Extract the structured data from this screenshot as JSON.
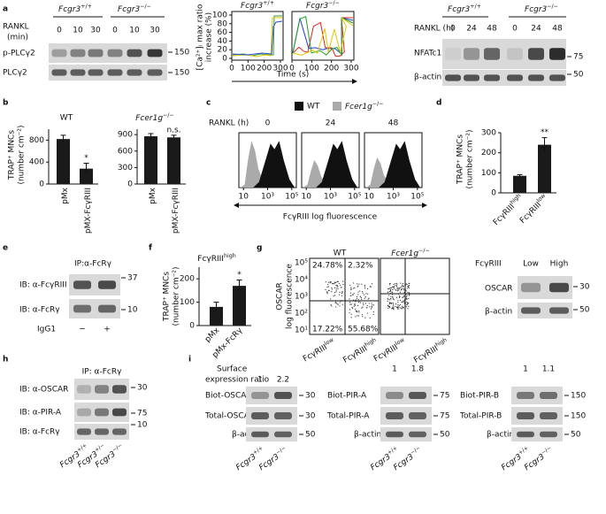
{
  "a": {
    "label": "a",
    "phospho": {
      "genotypes": [
        "Fcgr3+/+",
        "Fcgr3−/−"
      ],
      "treatment": "RANKL",
      "unit": "(min)",
      "times": [
        0,
        10,
        30,
        0,
        10,
        30
      ],
      "rows": [
        "p-PLCγ2",
        "PLCγ2"
      ],
      "mw": [
        150,
        150
      ]
    },
    "calcium": {
      "titles": [
        "Fcgr3+/+",
        "Fcgr3−/−"
      ],
      "ylabel": [
        "[Ca²⁺]ᵢ max ratio",
        "increase (%)"
      ],
      "xlabel": "Time (s)",
      "ylim": [
        0,
        100
      ],
      "yticks": [
        0,
        20,
        40,
        60,
        80,
        100
      ],
      "xlim": [
        0,
        300
      ],
      "xticks": [
        0,
        100,
        200,
        300
      ]
    },
    "nfatc1": {
      "genotypes": [
        "Fcgr3+/+",
        "Fcgr3−/−"
      ],
      "treatment": "RANKL (h)",
      "times": [
        0,
        24,
        48,
        0,
        24,
        48
      ],
      "rows": [
        "NFATc1",
        "β-actin"
      ],
      "mw": [
        75,
        50
      ]
    }
  },
  "b": {
    "label": "b",
    "ylabel": [
      "TRAP⁺ MNCs",
      "(number cm⁻²)"
    ],
    "charts": [
      {
        "title": "WT",
        "categories": [
          "pMx",
          "pMX-FcγRIII"
        ],
        "values": [
          820,
          280
        ],
        "errors": [
          70,
          100
        ],
        "annotations": [
          null,
          "*"
        ],
        "color": "#1a1a1a",
        "ylim": [
          0,
          1000
        ],
        "yticks": [
          0,
          400,
          800
        ]
      },
      {
        "title": "Fcer1g−/−",
        "categories": [
          "pMx",
          "pMX-FcγRIII"
        ],
        "values": [
          870,
          850
        ],
        "errors": [
          50,
          40
        ],
        "annotations": [
          null,
          "n.s."
        ],
        "color": "#1a1a1a",
        "ylim": [
          0,
          1000
        ],
        "yticks": [
          0,
          300,
          600,
          900
        ]
      }
    ]
  },
  "c": {
    "label": "c",
    "legend": [
      "WT",
      "Fcer1g−/−"
    ],
    "treatment": "RANKL (h)",
    "times": [
      0,
      24,
      48
    ],
    "xticks": [
      "10",
      "10³",
      "10⁵"
    ],
    "xlabel": "FcγRIII log fluorescence"
  },
  "d": {
    "label": "d",
    "ylabel": [
      "TRAP⁺ MNCs",
      "(number cm⁻²)"
    ],
    "categories": [
      "FcγRIIIhigh",
      "FcγRIIIlow"
    ],
    "values": [
      85,
      240
    ],
    "errors": [
      6,
      35
    ],
    "annotations": [
      null,
      "**"
    ],
    "color": "#1a1a1a",
    "ylim": [
      0,
      300
    ],
    "yticks": [
      0,
      100,
      200,
      300
    ]
  },
  "e": {
    "label": "e",
    "ip": "IP:α-FcRγ",
    "rows": [
      "IB: α-FcγRIII",
      "IB: α-FcRγ"
    ],
    "mw": [
      37,
      10
    ],
    "control": "IgG1",
    "signs": [
      "−",
      "+"
    ]
  },
  "f": {
    "label": "f",
    "title": "FcγRIIIhigh",
    "ylabel": [
      "TRAP⁺ MNCs",
      "(number cm⁻²)"
    ],
    "categories": [
      "pMx",
      "pMx-FcRγ"
    ],
    "values": [
      80,
      170
    ],
    "errors": [
      20,
      25
    ],
    "annotations": [
      null,
      "*"
    ],
    "color": "#1a1a1a",
    "ylim": [
      0,
      250
    ],
    "yticks": [
      0,
      100,
      200
    ]
  },
  "g": {
    "label": "g",
    "titles": [
      "WT",
      "Fcer1g−/−"
    ],
    "ylabel": [
      "OSCAR",
      "log fluorescence"
    ],
    "yticks": [
      "10¹",
      "10²",
      "10³",
      "10⁴",
      "10⁵"
    ],
    "quadrants": [
      "24.78%",
      "2.32%",
      "17.22%",
      "55.68%"
    ],
    "xcategories": [
      "FcγRIIIlow",
      "FcγRIIIhigh"
    ],
    "blot": {
      "group": "FcγRIII",
      "levels": [
        "Low",
        "High"
      ],
      "rows": [
        "OSCAR",
        "β-actin"
      ],
      "mw": [
        30,
        50
      ]
    }
  },
  "h": {
    "label": "h",
    "ip": "IP: α-FcRγ",
    "rows": [
      "IB: α-OSCAR",
      "IB: α-PIR-A",
      "IB: α-FcRγ"
    ],
    "mw": [
      30,
      75,
      10
    ],
    "genotypes": [
      "Fcgr3+/+",
      "Fcgr3+/−",
      "Fcgr3−/−"
    ]
  },
  "i": {
    "label": "i",
    "ratio_label": [
      "Surface",
      "expression ratio"
    ],
    "genotypes": [
      "Fcgr3+/+",
      "Fcgr3−/−"
    ],
    "blots": [
      {
        "ratios": [
          1,
          2.2
        ],
        "rows": [
          "Biot-OSCAR",
          "Total-OSCAR",
          "β-actin"
        ],
        "mw": [
          30,
          30,
          50
        ]
      },
      {
        "ratios": [
          1,
          1.8
        ],
        "rows": [
          "Biot-PIR-A",
          "Total-PIR-A",
          "β-actin"
        ],
        "mw": [
          75,
          75,
          50
        ]
      },
      {
        "ratios": [
          1,
          1.1
        ],
        "rows": [
          "Biot-PIR-B",
          "Total-PIR-B",
          "β-actin"
        ],
        "mw": [
          150,
          150,
          50
        ]
      }
    ]
  }
}
